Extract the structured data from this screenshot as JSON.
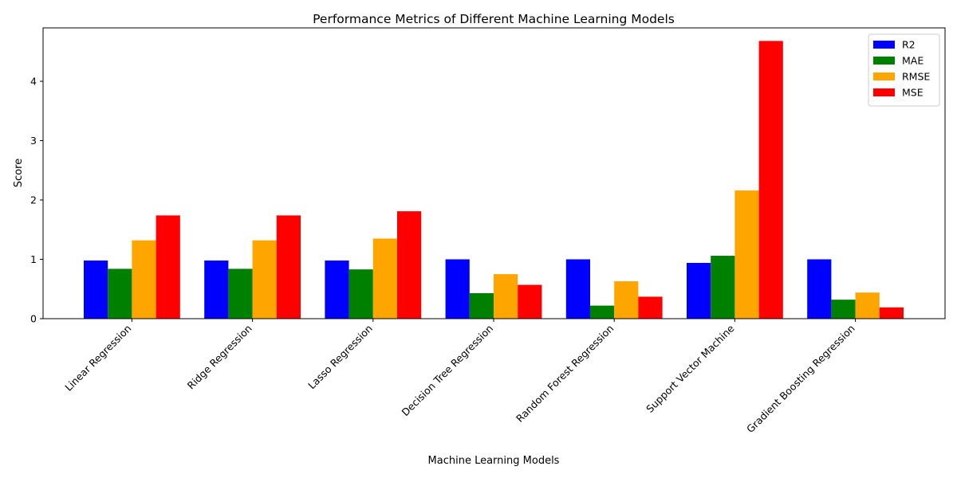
{
  "chart_data": {
    "type": "bar",
    "title": "Performance Metrics of Different Machine Learning Models",
    "xlabel": "Machine Learning Models",
    "ylabel": "Score",
    "ylim": [
      0,
      4.9
    ],
    "yticks": [
      0,
      1,
      2,
      3,
      4
    ],
    "grid": false,
    "legend_position": "top-right",
    "categories": [
      "Linear Regression",
      "Ridge Regression",
      "Lasso Regression",
      "Decision Tree Regression",
      "Random Forest Regression",
      "Support Vector Machine",
      "Gradient Boosting Regression"
    ],
    "series": [
      {
        "name": "R2",
        "color": "#0000ff",
        "values": [
          0.98,
          0.98,
          0.98,
          1.0,
          1.0,
          0.94,
          1.0
        ]
      },
      {
        "name": "MAE",
        "color": "#008000",
        "values": [
          0.84,
          0.84,
          0.83,
          0.43,
          0.22,
          1.06,
          0.32
        ]
      },
      {
        "name": "RMSE",
        "color": "#ffa500",
        "values": [
          1.32,
          1.32,
          1.35,
          0.75,
          0.63,
          2.16,
          0.44
        ]
      },
      {
        "name": "MSE",
        "color": "#ff0000",
        "values": [
          1.74,
          1.74,
          1.81,
          0.57,
          0.37,
          4.68,
          0.19
        ]
      }
    ]
  }
}
